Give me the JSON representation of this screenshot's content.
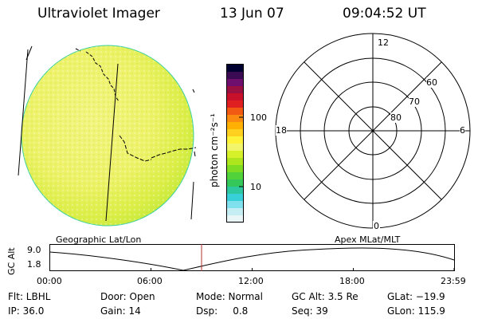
{
  "header": {
    "instrument": "Ultraviolet Imager",
    "date": "13 Jun 07",
    "time": "09:04:52 UT"
  },
  "colorbar": {
    "unit_label": "photon cm⁻²s⁻¹",
    "ticks": [
      "100",
      "10"
    ],
    "colors": [
      "#000030",
      "#3a0b52",
      "#6e0f6e",
      "#9a1040",
      "#c8102a",
      "#e02020",
      "#f05a12",
      "#fa8a10",
      "#ffb000",
      "#ffd020",
      "#fff33a",
      "#f2f56a",
      "#d6f02a",
      "#aee61e",
      "#7edc22",
      "#52d23a",
      "#34c85a",
      "#2ec8a0",
      "#38d0d8",
      "#80e0ee",
      "#c4eef4",
      "#e8f6f8"
    ]
  },
  "polar": {
    "mlt_top": "12",
    "mlt_bottom": "0",
    "mlt_left": "18",
    "mlt_right": "6",
    "lat_labels": [
      "60",
      "70",
      "80"
    ]
  },
  "altitude_plot": {
    "left_title": "Geographic Lat/Lon",
    "right_title": "Apex MLat/MLT",
    "y_label": "GC Alt",
    "y_ticks": [
      "9.0",
      "1.8"
    ],
    "x_ticks": [
      "00:00",
      "06:00",
      "12:00",
      "18:00",
      "23:59"
    ],
    "current_time_color": "#b03030"
  },
  "info": {
    "filter": "Flt: LBHL",
    "door": "Door: Open",
    "mode": "Mode: Normal",
    "gc_alt": "GC Alt: 3.5 Re",
    "glat": "GLat: −19.9",
    "ip": "IP: 36.0",
    "gain": "Gain: 14",
    "dsp": "Dsp:     0.8",
    "seq": "Seq: 39",
    "glon": "GLon: 115.9"
  }
}
